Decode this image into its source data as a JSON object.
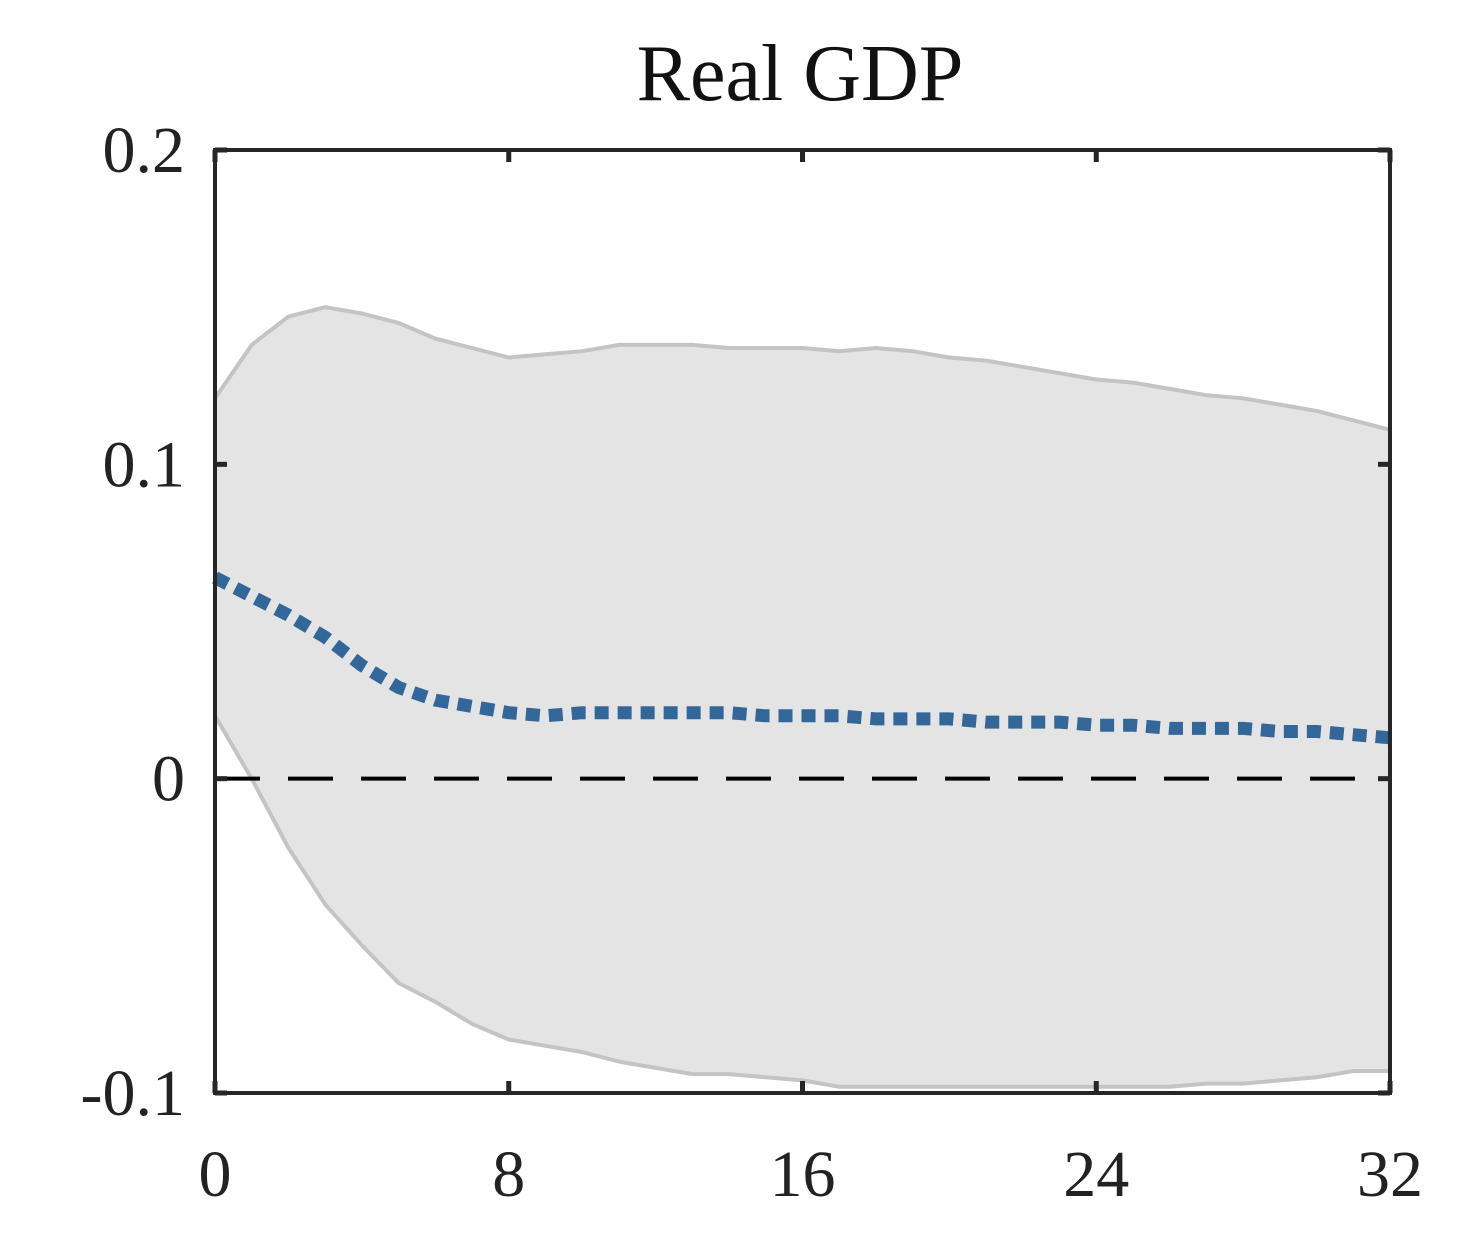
{
  "chart_data": {
    "type": "line",
    "title": "Real GDP",
    "xlabel": "",
    "ylabel": "",
    "xlim": [
      0,
      32
    ],
    "ylim": [
      -0.1,
      0.2
    ],
    "xticks": [
      0,
      8,
      16,
      24,
      32
    ],
    "xtick_labels": [
      "0",
      "8",
      "16",
      "24",
      "32"
    ],
    "yticks": [
      -0.1,
      0,
      0.1,
      0.2
    ],
    "ytick_labels": [
      "-0.1",
      "0",
      "0.1",
      "0.2"
    ],
    "grid": false,
    "zero_line": {
      "y": 0,
      "style": "dashed",
      "color": "#000000"
    },
    "x": [
      0,
      1,
      2,
      3,
      4,
      5,
      6,
      7,
      8,
      9,
      10,
      11,
      12,
      13,
      14,
      15,
      16,
      17,
      18,
      19,
      20,
      21,
      22,
      23,
      24,
      25,
      26,
      27,
      28,
      29,
      30,
      31,
      32
    ],
    "series": [
      {
        "role": "median",
        "style": "dotted",
        "color": "#336699",
        "values": [
          0.064,
          0.058,
          0.052,
          0.045,
          0.036,
          0.029,
          0.025,
          0.023,
          0.021,
          0.02,
          0.021,
          0.021,
          0.021,
          0.021,
          0.021,
          0.02,
          0.02,
          0.02,
          0.019,
          0.019,
          0.019,
          0.018,
          0.018,
          0.018,
          0.017,
          0.017,
          0.016,
          0.016,
          0.016,
          0.015,
          0.015,
          0.014,
          0.013
        ]
      },
      {
        "role": "upper_band",
        "color": "#c4c4c4",
        "values": [
          0.121,
          0.138,
          0.147,
          0.15,
          0.148,
          0.145,
          0.14,
          0.137,
          0.134,
          0.135,
          0.136,
          0.138,
          0.138,
          0.138,
          0.137,
          0.137,
          0.137,
          0.136,
          0.137,
          0.136,
          0.134,
          0.133,
          0.131,
          0.129,
          0.127,
          0.126,
          0.124,
          0.122,
          0.121,
          0.119,
          0.117,
          0.114,
          0.111
        ]
      },
      {
        "role": "lower_band",
        "color": "#c4c4c4",
        "values": [
          0.02,
          0.0,
          -0.022,
          -0.04,
          -0.053,
          -0.065,
          -0.071,
          -0.078,
          -0.083,
          -0.085,
          -0.087,
          -0.09,
          -0.092,
          -0.094,
          -0.094,
          -0.095,
          -0.096,
          -0.098,
          -0.098,
          -0.098,
          -0.098,
          -0.098,
          -0.098,
          -0.098,
          -0.098,
          -0.098,
          -0.098,
          -0.097,
          -0.097,
          -0.096,
          -0.095,
          -0.093,
          -0.093
        ]
      }
    ],
    "band_fill_color": "#e4e4e4",
    "axis_color": "#262626"
  }
}
